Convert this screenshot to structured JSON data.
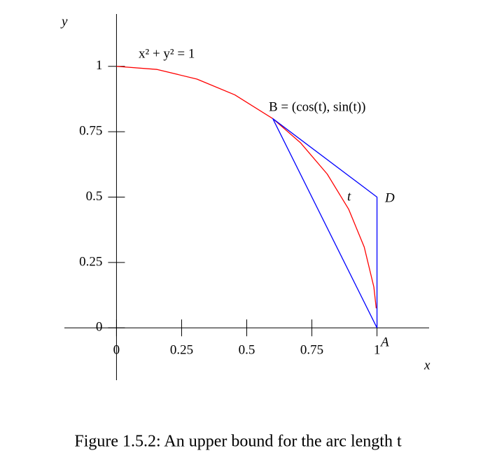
{
  "chart_data": {
    "type": "line",
    "xlabel": "x",
    "ylabel": "y",
    "xlim": [
      -0.2,
      1.2
    ],
    "ylim": [
      -0.2,
      1.2
    ],
    "xticks": [
      0,
      0.25,
      0.5,
      0.75,
      1
    ],
    "yticks": [
      0,
      0.25,
      0.5,
      0.75,
      1
    ],
    "series": [
      {
        "color": "#ff0000",
        "x": [
          0,
          0.156,
          0.309,
          0.454,
          0.6,
          0.707,
          0.809,
          0.891,
          0.951,
          0.988,
          0.997
        ],
        "values": [
          1,
          0.988,
          0.951,
          0.891,
          0.8,
          0.707,
          0.588,
          0.454,
          0.309,
          0.156,
          0.075
        ]
      },
      {
        "color": "#0000ff",
        "x": [
          1,
          0.6,
          1,
          1
        ],
        "values": [
          0,
          0.8,
          0.5,
          0
        ]
      }
    ],
    "annotations": [
      "x² + y² = 1",
      "B = (cos(t), sin(t))",
      "t",
      "D",
      "A"
    ],
    "caption": "Figure 1.5.2: An upper bound for the arc length t"
  }
}
